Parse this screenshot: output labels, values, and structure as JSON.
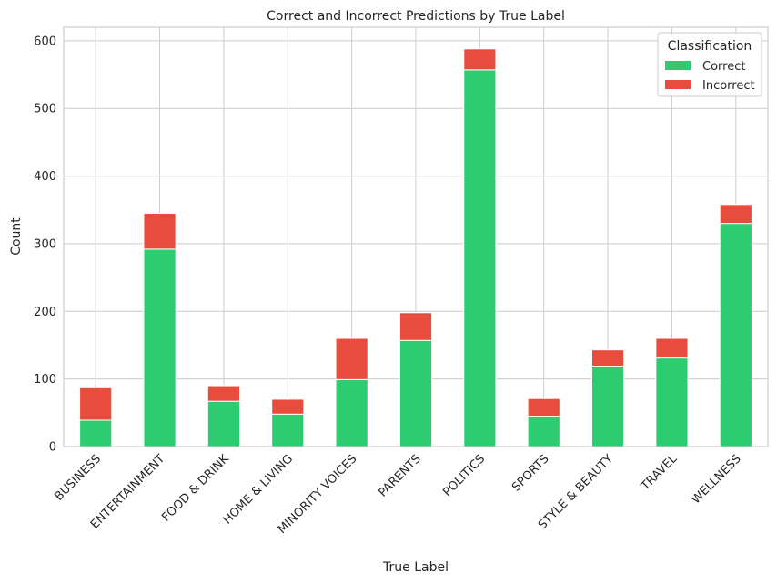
{
  "chart_data": {
    "type": "bar",
    "stacked": true,
    "title": "Correct and Incorrect Predictions by True Label",
    "xlabel": "True Label",
    "ylabel": "Count",
    "ylim": [
      0,
      620
    ],
    "yticks": [
      0,
      100,
      200,
      300,
      400,
      500,
      600
    ],
    "grid": true,
    "legend": {
      "title": "Classification",
      "placement": "top-right"
    },
    "categories": [
      "BUSINESS",
      "ENTERTAINMENT",
      "FOOD & DRINK",
      "HOME & LIVING",
      "MINORITY VOICES",
      "PARENTS",
      "POLITICS",
      "SPORTS",
      "STYLE & BEAUTY",
      "TRAVEL",
      "WELLNESS"
    ],
    "series": [
      {
        "name": "Correct",
        "color": "#2ecc71",
        "values": [
          39,
          292,
          67,
          48,
          99,
          157,
          557,
          45,
          119,
          131,
          330
        ]
      },
      {
        "name": "Incorrect",
        "color": "#e74c3c",
        "values": [
          48,
          53,
          23,
          22,
          61,
          41,
          31,
          26,
          24,
          29,
          28
        ]
      }
    ]
  }
}
